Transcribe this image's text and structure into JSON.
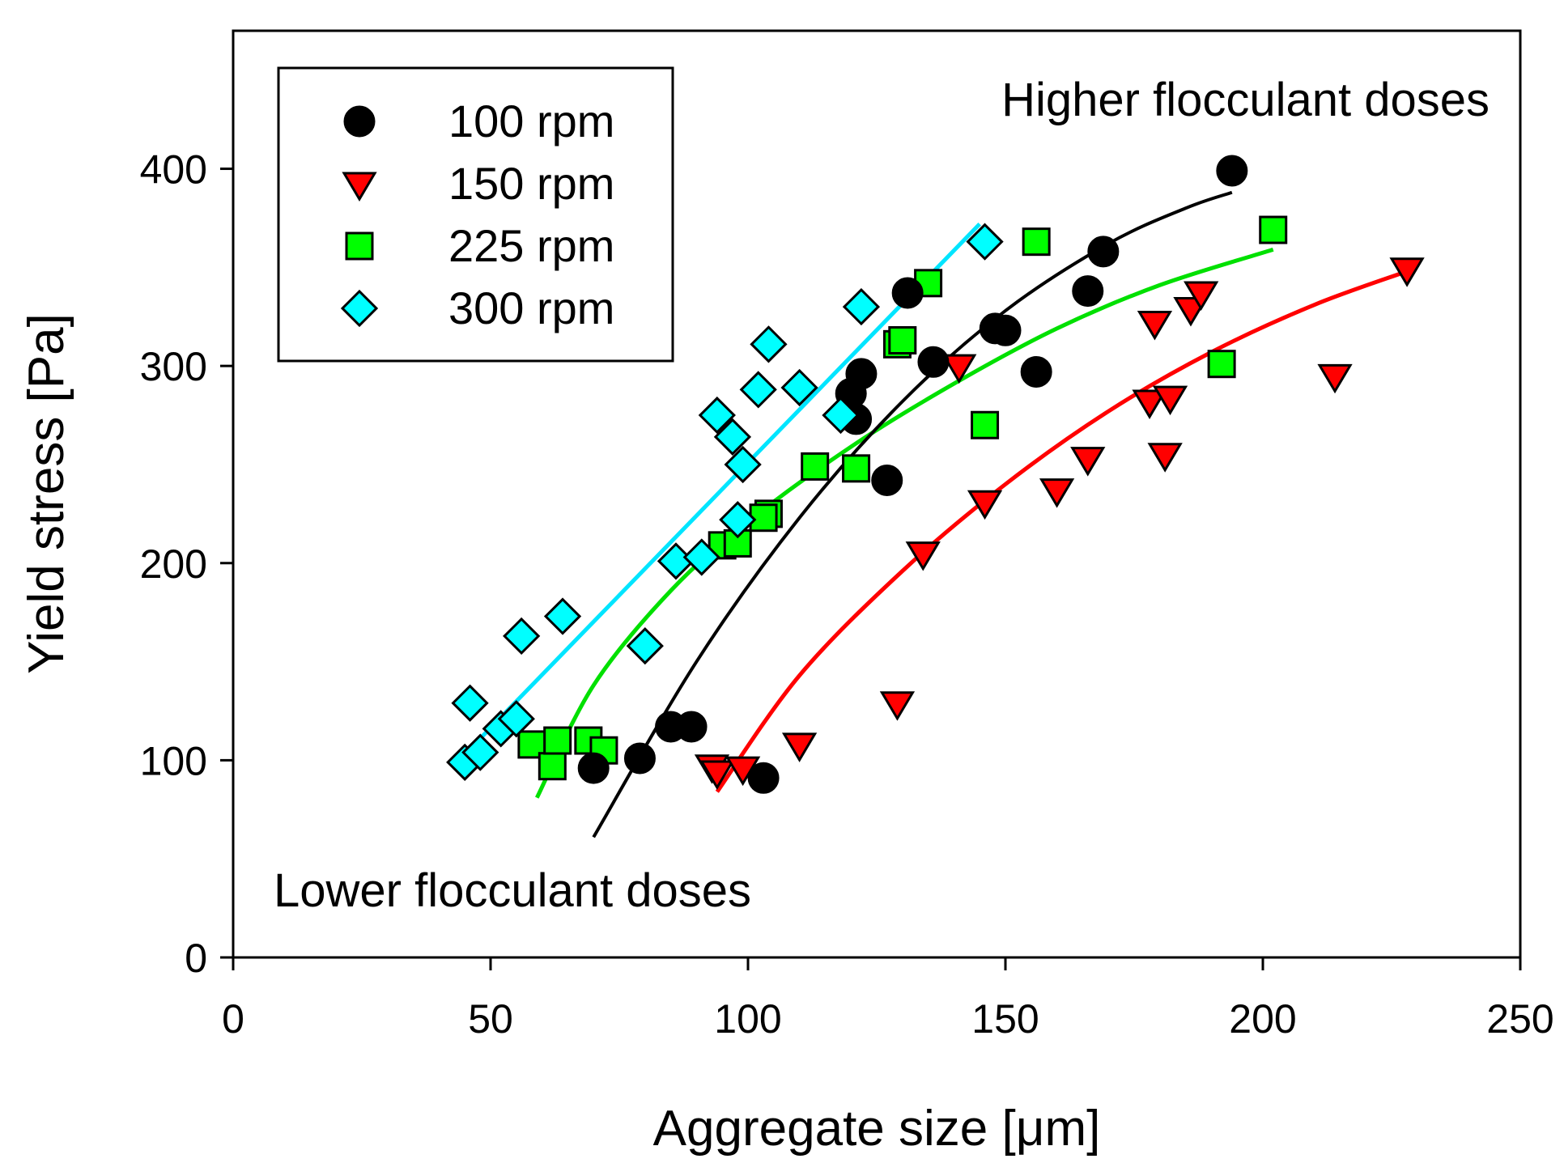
{
  "chart_data": {
    "type": "scatter",
    "title": "",
    "xlabel": "Aggregate size [μm]",
    "ylabel": "Yield stress [Pa]",
    "xlim": [
      0,
      250
    ],
    "ylim": [
      0,
      470
    ],
    "xticks": [
      "0",
      "50",
      "100",
      "150",
      "200",
      "250"
    ],
    "yticks": [
      "0",
      "100",
      "200",
      "300",
      "400"
    ],
    "legend_position": "top-left",
    "annotations": [
      {
        "text": "Higher flocculant doses",
        "position": "top-right"
      },
      {
        "text": "Lower flocculant doses",
        "position": "bottom-left"
      }
    ],
    "series": [
      {
        "name": "100 rpm",
        "marker": "circle",
        "color": "#000000",
        "x": [
          70,
          79,
          85,
          89,
          103,
          120,
          121,
          122,
          127,
          131,
          136,
          148,
          150,
          156,
          166,
          169,
          194
        ],
        "y": [
          96,
          101,
          117,
          117,
          91,
          286,
          273,
          296,
          242,
          337,
          302,
          319,
          318,
          297,
          338,
          358,
          399
        ],
        "fit": {
          "x": [
            70,
            90,
            110,
            130,
            150,
            170,
            185,
            194
          ],
          "y": [
            61,
            150,
            223,
            282,
            328,
            362,
            380,
            388
          ]
        }
      },
      {
        "name": "150 rpm",
        "marker": "triangle-down",
        "color": "#ff0000",
        "x": [
          93,
          94,
          99,
          110,
          129,
          134,
          141,
          146,
          160,
          166,
          179,
          178,
          182,
          181,
          186,
          188,
          214,
          228
        ],
        "y": [
          97,
          94,
          96,
          108,
          129,
          205,
          300,
          231,
          237,
          253,
          322,
          282,
          284,
          255,
          329,
          337,
          295,
          349
        ],
        "fit": {
          "x": [
            94,
            110,
            130,
            150,
            170,
            190,
            210,
            228
          ],
          "y": [
            84,
            143,
            196,
            240,
            277,
            307,
            331,
            348
          ]
        }
      },
      {
        "name": "225 rpm",
        "marker": "square",
        "color": "#00ff00",
        "x": [
          58,
          62,
          63,
          69,
          72,
          95,
          98,
          104,
          103,
          113,
          121,
          129,
          130,
          135,
          146,
          156,
          192,
          202
        ],
        "y": [
          108,
          97,
          110,
          110,
          105,
          209,
          210,
          225,
          223,
          249,
          248,
          311,
          313,
          342,
          270,
          363,
          301,
          369
        ],
        "fit": {
          "x": [
            59,
            70,
            85,
            100,
            120,
            140,
            160,
            180,
            202
          ],
          "y": [
            81,
            138,
            186,
            221,
            259,
            291,
            319,
            341,
            359
          ]
        }
      },
      {
        "name": "300 rpm",
        "marker": "diamond",
        "color": "#00ffff",
        "x": [
          45,
          46,
          48,
          52,
          55,
          56,
          64,
          80,
          86,
          91,
          94,
          97,
          98,
          99,
          102,
          104,
          110,
          118,
          122,
          146
        ],
        "y": [
          99,
          129,
          104,
          116,
          121,
          163,
          173,
          158,
          201,
          203,
          275,
          264,
          222,
          250,
          288,
          311,
          289,
          275,
          330,
          363
        ],
        "fit": {
          "x": [
            45,
            145
          ],
          "y": [
            103,
            372
          ]
        }
      }
    ]
  }
}
